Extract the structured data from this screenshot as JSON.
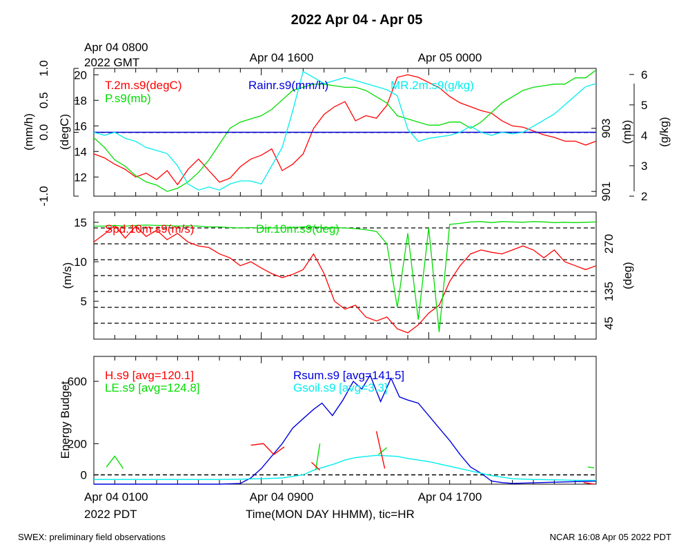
{
  "page": {
    "title": "2022 Apr 04 - Apr 05",
    "footer_left": "SWEX: preliminary field observations",
    "footer_right": "NCAR 16:08 Apr 05 2022 PDT",
    "top_time_labels": [
      "Apr 04 0800",
      "Apr 04 1600",
      "Apr 05 0000"
    ],
    "top_gmt_label": "2022 GMT",
    "bottom_time_labels": [
      "Apr 04 0100",
      "Apr 04 0900",
      "Apr 04 1700"
    ],
    "bottom_pdt_label": "2022 PDT",
    "xlabel": "Time(MON DAY HHMM), tic=HR"
  },
  "colors": {
    "red": "#ff0000",
    "green": "#00dd00",
    "blue": "#0000dd",
    "cyan": "#00eeee",
    "black": "#000000"
  },
  "chart_data": [
    {
      "type": "line",
      "panel": "top",
      "x_unit": "hours since Apr 04 0100 PDT",
      "xlim": [
        0,
        24
      ],
      "legend": [
        "T.2m.s9(degC)",
        "P.s9(mb)",
        "Rainr.s9(mm/h)",
        "MR.2m.s9(g/kg)"
      ],
      "axes": [
        {
          "label": "(mm/h)",
          "side": "left-outer",
          "ylim": [
            -1.0,
            1.0
          ],
          "ticks": [
            "-1.0",
            "0.0",
            "0.5",
            "1.0"
          ]
        },
        {
          "label": "(degC)",
          "side": "left-inner",
          "ylim": [
            10.5,
            20.5
          ],
          "ticks": [
            "12",
            "14",
            "16",
            "18",
            "20"
          ]
        },
        {
          "label": "(mb)",
          "side": "right-inner",
          "ylim": [
            900.85,
            904.9
          ],
          "ticks": [
            "901",
            "903"
          ]
        },
        {
          "label": "(g/kg)",
          "side": "right-outer",
          "ylim": [
            2,
            6.2
          ],
          "ticks": [
            "2",
            "3",
            "4",
            "5",
            "6"
          ]
        }
      ],
      "series": [
        {
          "name": "T.2m.s9(degC)",
          "axis": 1,
          "color": "red",
          "x": [
            0,
            0.5,
            1,
            1.5,
            2,
            2.5,
            3,
            3.5,
            4,
            4.5,
            5,
            5.5,
            6,
            6.5,
            7,
            7.5,
            8,
            8.5,
            9,
            9.5,
            10,
            10.5,
            11,
            11.5,
            12,
            12.5,
            13,
            13.5,
            14,
            14.5,
            15,
            15.5,
            16,
            16.5,
            17,
            17.5,
            18,
            18.5,
            19,
            19.5,
            20,
            20.5,
            21,
            21.5,
            22,
            22.5,
            23,
            23.5,
            24
          ],
          "y": [
            13.8,
            13.5,
            13.0,
            12.6,
            12.0,
            12.3,
            11.8,
            12.5,
            11.4,
            12.6,
            13.4,
            12.5,
            11.6,
            11.9,
            12.8,
            13.4,
            13.7,
            14.2,
            12.5,
            13.0,
            13.8,
            15.8,
            16.9,
            17.5,
            17.9,
            16.4,
            16.8,
            16.6,
            17.6,
            19.8,
            20.0,
            19.8,
            19.4,
            19.0,
            18.3,
            17.8,
            17.5,
            17.2,
            17.0,
            16.4,
            16.0,
            15.9,
            15.6,
            15.3,
            15.1,
            14.8,
            14.8,
            14.5,
            14.8
          ]
        },
        {
          "name": "P.s9(mb)",
          "axis": 2,
          "color": "green",
          "x": [
            0,
            0.5,
            1,
            1.5,
            2,
            2.5,
            3,
            3.5,
            4,
            4.5,
            5,
            5.5,
            6,
            6.5,
            7,
            7.5,
            8,
            8.5,
            9,
            9.5,
            10,
            10.5,
            11,
            11.5,
            12,
            12.5,
            13,
            13.5,
            14,
            14.5,
            15,
            15.5,
            16,
            16.5,
            17,
            17.5,
            18,
            18.5,
            19,
            19.5,
            20,
            20.5,
            21,
            21.5,
            22,
            22.5,
            23,
            23.5,
            24
          ],
          "y": [
            902.7,
            902.4,
            902.0,
            901.8,
            901.5,
            901.3,
            901.2,
            901.0,
            901.1,
            901.3,
            901.6,
            902.0,
            902.5,
            903.0,
            903.2,
            903.3,
            903.4,
            903.6,
            903.9,
            904.2,
            904.3,
            904.4,
            904.4,
            904.35,
            904.3,
            904.3,
            904.2,
            904.0,
            903.8,
            903.4,
            903.3,
            903.2,
            903.1,
            903.1,
            903.2,
            903.2,
            903.0,
            903.2,
            903.5,
            903.8,
            904.0,
            904.2,
            904.3,
            904.35,
            904.4,
            904.4,
            904.6,
            904.6,
            904.85
          ]
        },
        {
          "name": "Rainr.s9(mm/h)",
          "axis": 0,
          "color": "blue",
          "x": [
            0,
            24
          ],
          "y": [
            0.0,
            0.0
          ]
        },
        {
          "name": "MR.2m.s9(g/kg)",
          "axis": 3,
          "color": "cyan",
          "x": [
            0,
            0.5,
            1,
            1.5,
            2,
            2.5,
            3,
            3.5,
            4,
            4.5,
            5,
            5.5,
            6,
            6.5,
            7,
            7.5,
            8,
            8.5,
            9,
            9.5,
            10,
            10.5,
            11,
            11.5,
            12,
            12.5,
            13,
            13.5,
            14,
            14.5,
            15,
            15.5,
            16,
            16.5,
            17,
            17.5,
            18,
            18.5,
            19,
            19.5,
            20,
            20.5,
            21,
            21.5,
            22,
            22.5,
            23,
            23.5,
            24
          ],
          "y": [
            4.1,
            4.0,
            4.1,
            3.9,
            3.8,
            3.6,
            3.5,
            3.4,
            3.0,
            2.4,
            2.2,
            2.3,
            2.2,
            2.4,
            2.5,
            2.5,
            2.4,
            3.0,
            3.6,
            4.8,
            6.1,
            5.9,
            5.7,
            5.8,
            5.9,
            5.8,
            5.7,
            5.6,
            5.5,
            5.3,
            4.2,
            3.8,
            3.9,
            3.95,
            4.0,
            4.1,
            4.3,
            4.1,
            4.0,
            4.1,
            4.05,
            4.1,
            4.3,
            4.5,
            4.7,
            5.0,
            5.3,
            5.6,
            5.7
          ]
        }
      ]
    },
    {
      "type": "line",
      "panel": "middle",
      "x_unit": "hours since Apr 04 0100 PDT",
      "xlim": [
        0,
        24
      ],
      "legend": [
        "Spd.10m.s9(m/s)",
        "Dir.10m.s9(deg)"
      ],
      "axes": [
        {
          "label": "(m/s)",
          "side": "left",
          "ylim": [
            0.2,
            16.3
          ],
          "ticks": [
            "5",
            "10",
            "15"
          ]
        },
        {
          "label": "(deg)",
          "side": "right",
          "ylim": [
            0,
            360
          ],
          "ticks": [
            "45",
            "135",
            "270"
          ]
        }
      ],
      "dir_gridlines_deg": [
        45,
        90,
        135,
        180,
        225,
        270,
        315
      ],
      "series": [
        {
          "name": "Spd.10m.s9(m/s)",
          "axis": 0,
          "color": "red",
          "x": [
            0,
            0.5,
            1,
            1.5,
            2,
            2.5,
            3,
            3.5,
            4,
            4.5,
            5,
            5.5,
            6,
            6.5,
            7,
            7.5,
            8,
            8.5,
            9,
            9.5,
            10,
            10.5,
            11,
            11.5,
            12,
            12.5,
            13,
            13.5,
            14,
            14.5,
            15,
            15.5,
            16,
            16.5,
            17,
            17.5,
            18,
            18.5,
            19,
            19.5,
            20,
            20.5,
            21,
            21.5,
            22,
            22.5,
            23,
            23.5,
            24
          ],
          "y": [
            12.5,
            13.5,
            14.6,
            13.0,
            14.5,
            13.2,
            14.0,
            12.8,
            13.6,
            12.5,
            12.0,
            11.8,
            11.0,
            10.5,
            9.5,
            10.0,
            9.2,
            8.5,
            8.0,
            8.4,
            9.0,
            11.0,
            8.5,
            5.0,
            4.0,
            4.5,
            3.0,
            2.5,
            3.0,
            1.5,
            1.0,
            2.0,
            3.5,
            4.5,
            7.5,
            9.5,
            11.0,
            11.5,
            11.2,
            11.0,
            11.5,
            12.0,
            11.5,
            10.5,
            11.5,
            10.0,
            9.5,
            9.0,
            9.5
          ]
        },
        {
          "name": "Dir.10m.s9(deg)",
          "axis": 1,
          "color": "green",
          "x": [
            0,
            0.5,
            1,
            1.5,
            2,
            2.5,
            3,
            3.5,
            4,
            4.5,
            5,
            5.5,
            6,
            6.5,
            7,
            7.5,
            8,
            8.5,
            9,
            9.5,
            10,
            10.5,
            11,
            11.5,
            12,
            12.5,
            13,
            13.5,
            14,
            14.5,
            15,
            15.5,
            16,
            16.5,
            17,
            17.5,
            18,
            18.5,
            19,
            19.5,
            20,
            20.5,
            21,
            21.5,
            22,
            22.5,
            23,
            23.5,
            24
          ],
          "y": [
            320,
            320,
            322,
            320,
            322,
            323,
            322,
            322,
            320,
            321,
            320,
            318,
            318,
            316,
            315,
            316,
            314,
            315,
            315,
            316,
            318,
            318,
            316,
            316,
            315,
            313,
            310,
            305,
            270,
            90,
            300,
            55,
            315,
            20,
            325,
            328,
            332,
            333,
            330,
            333,
            332,
            331,
            333,
            332,
            330,
            331,
            330,
            331,
            332
          ]
        }
      ]
    },
    {
      "type": "line",
      "panel": "bottom",
      "x_unit": "hours since Apr 04 0100 PDT",
      "xlim": [
        0,
        24
      ],
      "ylabel": "Energy Budget",
      "ylim": [
        -60,
        760
      ],
      "yticks": [
        "0",
        "200",
        "600"
      ],
      "legend": [
        "H.s9 [avg=120.1]",
        "LE.s9 [avg=124.8]",
        "Rsum.s9 [avg=141.5]",
        "Gsoil.s9 [avg=3.3]"
      ],
      "series": [
        {
          "name": "Rsum.s9 [avg=141.5]",
          "color": "blue",
          "x": [
            0,
            6,
            7,
            7.5,
            8,
            8.5,
            9,
            9.5,
            10,
            10.5,
            10.9,
            11.4,
            11.9,
            12.4,
            12.8,
            13.2,
            13.7,
            14.2,
            14.6,
            15,
            15.5,
            16,
            16.5,
            17,
            17.5,
            18,
            18.5,
            19,
            19.5,
            20,
            24
          ],
          "y": [
            -60,
            -60,
            -55,
            -20,
            40,
            120,
            200,
            300,
            360,
            420,
            460,
            380,
            480,
            600,
            550,
            640,
            470,
            620,
            500,
            480,
            460,
            380,
            300,
            220,
            130,
            50,
            10,
            -40,
            -50,
            -55,
            -40
          ]
        },
        {
          "name": "Gsoil.s9 [avg=3.3]",
          "color": "cyan",
          "x": [
            0,
            6,
            7,
            8,
            9,
            9.5,
            10,
            10.5,
            11,
            11.5,
            12,
            12.5,
            13,
            13.5,
            14,
            14.5,
            15,
            16,
            17,
            18,
            19,
            20,
            21,
            22,
            23,
            24
          ],
          "y": [
            -30,
            -30,
            -28,
            -25,
            -20,
            -10,
            0,
            30,
            50,
            70,
            95,
            110,
            118,
            125,
            122,
            118,
            105,
            85,
            55,
            25,
            -5,
            -25,
            -30,
            -32,
            -35,
            -35
          ]
        },
        {
          "name": "LE.s9 [avg=124.8]",
          "color": "green",
          "x": [
            0.6,
            1.0,
            1.4,
            null,
            10.6,
            10.8,
            null,
            13.6,
            14.0,
            null,
            23.6,
            23.9
          ],
          "y": [
            50,
            120,
            40,
            null,
            30,
            200,
            null,
            130,
            175,
            null,
            50,
            45
          ]
        },
        {
          "name": "H.s9 [avg=120.1]",
          "color": "red",
          "x": [
            7.5,
            8.1,
            8.6,
            9.1,
            null,
            10.4,
            10.8,
            null,
            13.5,
            13.9,
            null,
            23.4,
            23.9
          ],
          "y": [
            190,
            200,
            130,
            180,
            null,
            80,
            30,
            null,
            280,
            40,
            null,
            -50,
            -60
          ]
        }
      ]
    }
  ]
}
